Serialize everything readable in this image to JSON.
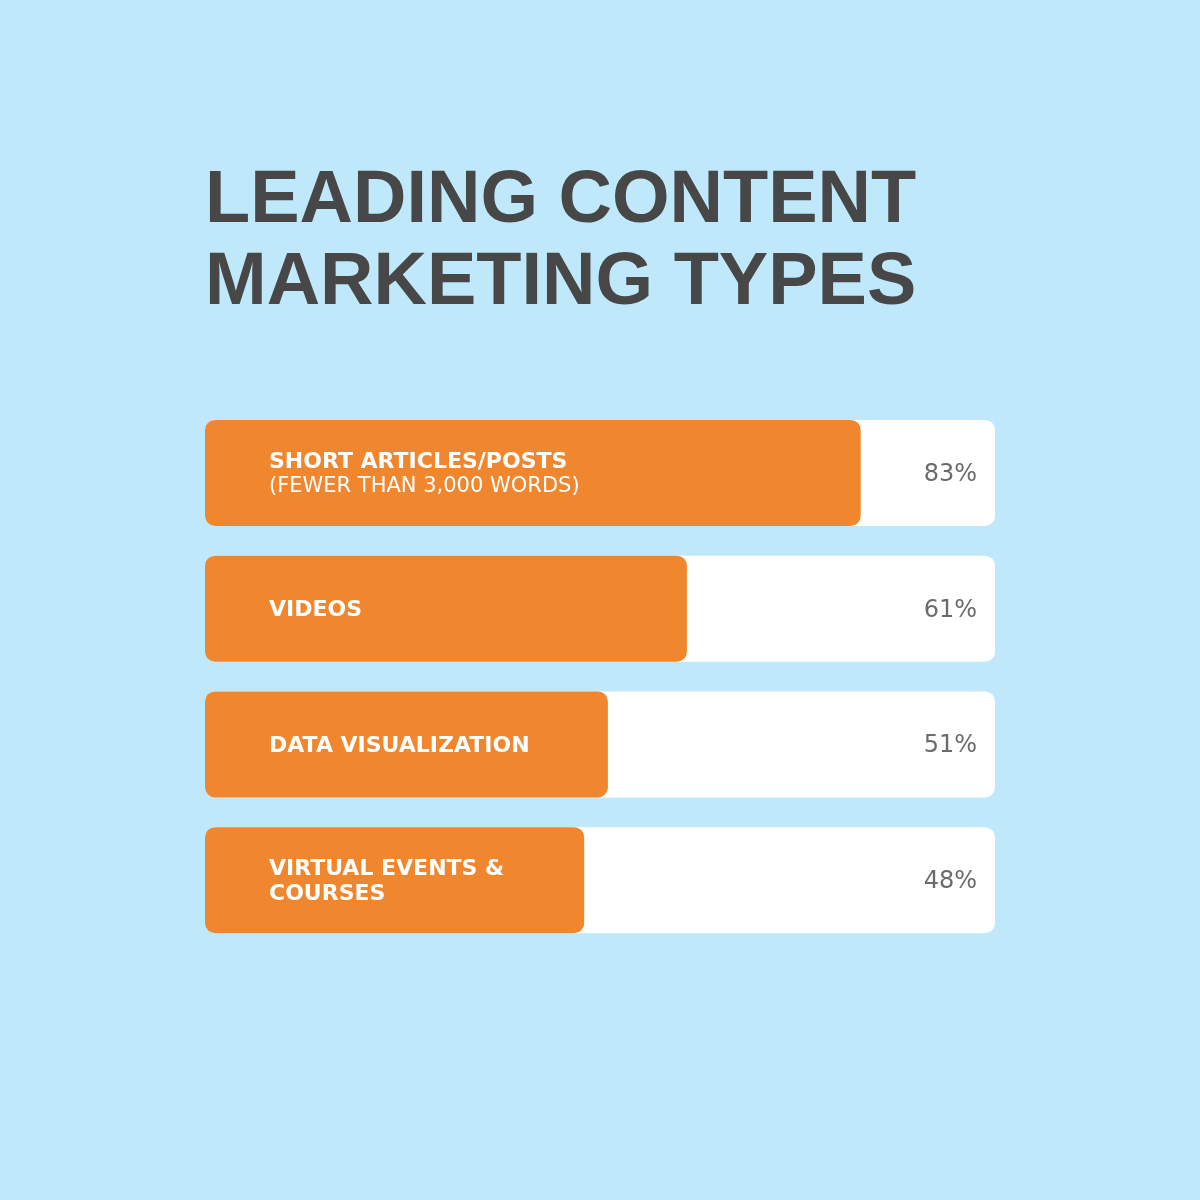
{
  "chart_data": {
    "type": "bar",
    "orientation": "horizontal",
    "title": "LEADING CONTENT\nMARKETING TYPES",
    "categories": [
      "SHORT ARTICLES/POSTS\n(FEWER THAN 3,000 WORDS)",
      "VIDEOS",
      "DATA VISUALIZATION",
      "VIRTUAL EVENTS &\nCOURSES"
    ],
    "values": [
      83,
      61,
      51,
      48
    ],
    "value_labels": [
      "83%",
      "61%",
      "51%",
      "48%"
    ],
    "color": "#f0872e"
  }
}
